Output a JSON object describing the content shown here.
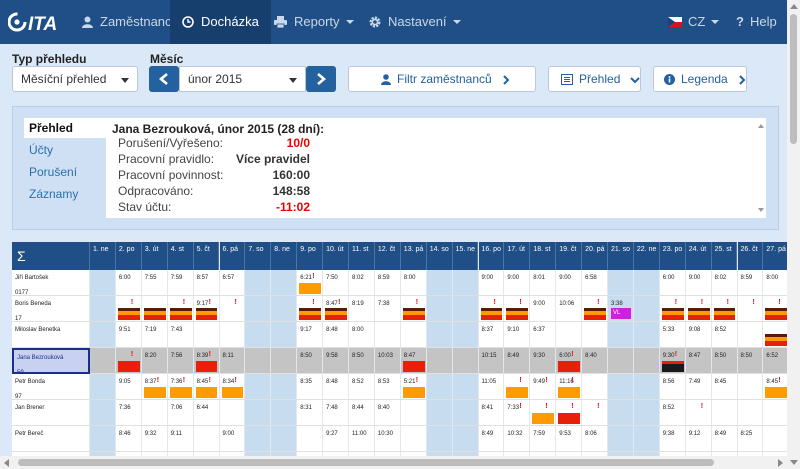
{
  "nav": {
    "logo_text": "ITA",
    "items": [
      {
        "label": "Zaměstnanci",
        "icon": "user-icon"
      },
      {
        "label": "Docházka",
        "icon": "clock-icon",
        "active": true
      },
      {
        "label": "Reporty",
        "icon": "print-icon",
        "dropdown": true
      },
      {
        "label": "Nastavení",
        "icon": "gear-icon",
        "dropdown": true
      }
    ],
    "lang": "CZ",
    "help": "Help"
  },
  "filters": {
    "type_label": "Typ přehledu",
    "type_value": "Měsíční přehled",
    "month_label": "Měsíc",
    "month_value": "únor 2015",
    "filter_button": "Filtr zaměstnanců",
    "overview_button": "Přehled",
    "legend_button": "Legenda"
  },
  "summary": {
    "tabs": [
      "Přehled",
      "Účty",
      "Porušení",
      "Záznamy"
    ],
    "title": "Jana Bezrouková, únor 2015 (28 dní):",
    "rows": [
      {
        "key": "Porušení/Vyřešeno:",
        "value": "10/0",
        "red": true
      },
      {
        "key": "Pracovní pravidlo:",
        "value": "Více pravidel",
        "red": false
      },
      {
        "key": "Pracovní povinnost:",
        "value": "160:00",
        "red": false
      },
      {
        "key": "Odpracováno:",
        "value": "148:58",
        "red": false
      },
      {
        "key": "Stav účtu:",
        "value": "-11:02",
        "red": true
      }
    ]
  },
  "grid": {
    "sigma": "Σ",
    "days": [
      "1. ne",
      "2. po",
      "3. út",
      "4. st",
      "5. čt",
      "6. pá",
      "7. so",
      "8. ne",
      "9. po",
      "10. út",
      "11. st",
      "12. čt",
      "13. pá",
      "14. so",
      "15. ne",
      "16. po",
      "17. út",
      "18. st",
      "19. čt",
      "20. pá",
      "21. so",
      "22. ne",
      "23. po",
      "24. út",
      "25. st",
      "26. čt",
      "27. pá"
    ],
    "weekend_cols": [
      0,
      6,
      7,
      13,
      14,
      20,
      21
    ],
    "colors": {
      "orange": "#ff9a00",
      "red": "#e8200a",
      "dark": "#5a1a0a",
      "purple": "#cc22dd",
      "header": "#1f4f86",
      "weekend": "#c8dcf0"
    },
    "employees": [
      {
        "name": "Jiří Bartošek",
        "num": "0177",
        "times": {
          "1": "6:00",
          "2": "7:55",
          "3": "7:59",
          "4": "8:57",
          "5": "6:57",
          "8": "6:21",
          "9": "7:50",
          "10": "8:02",
          "11": "8:59",
          "12": "8:00",
          "15": "9:00",
          "16": "9:00",
          "17": "8:01",
          "18": "9:00",
          "19": "6:58",
          "22": "6:00",
          "23": "9:00",
          "24": "8:02",
          "25": "8:59",
          "26": "8:00"
        },
        "excl": [
          "8"
        ],
        "bars": {
          "8": "o"
        }
      },
      {
        "name": "Boris Beneda",
        "num": "17",
        "times": {
          "4": "9:17",
          "9": "8:47",
          "10": "8:19",
          "11": "7:38",
          "17": "9:00",
          "18": "10:06",
          "20": "3:38"
        },
        "excl": [
          "1",
          "3",
          "4",
          "5",
          "8",
          "9",
          "12",
          "15",
          "16",
          "19",
          "22",
          "23",
          "24",
          "25",
          "26"
        ],
        "bars": {
          "1": "s",
          "2": "s",
          "3": "s",
          "4": "s",
          "8": "s",
          "9": "s",
          "12": "s",
          "15": "s",
          "16": "s",
          "19": "s",
          "20": "p",
          "22": "s",
          "23": "s",
          "24": "s",
          "26": "s"
        },
        "purple_label": "VL"
      },
      {
        "name": "Miloslav Benetka",
        "num": "",
        "times": {
          "1": "9:51",
          "2": "7:19",
          "3": "7:43",
          "8": "9:17",
          "9": "8:48",
          "10": "8:00",
          "15": "8:37",
          "16": "9:10",
          "17": "6:37",
          "22": "5:33",
          "23": "9:08",
          "24": "8:52"
        },
        "excl": [],
        "bars": {
          "26": "s"
        }
      },
      {
        "name": "Jana Bezrouková",
        "num": "59",
        "times": {
          "2": "8:20",
          "3": "7:56",
          "4": "8:39",
          "5": "8:11",
          "8": "8:50",
          "9": "9:58",
          "10": "8:50",
          "11": "10:03",
          "12": "8:47",
          "15": "10:15",
          "16": "8:49",
          "17": "9:30",
          "18": "6:00",
          "19": "8:40",
          "22": "9:30",
          "23": "8:47",
          "24": "8:50",
          "25": "8:50",
          "26": "6:52"
        },
        "excl": [
          "1",
          "4",
          "18",
          "22"
        ],
        "bars": {
          "1": "r",
          "4": "r",
          "12": "r",
          "18": "r",
          "22": "k"
        }
      },
      {
        "name": "Petr Bonda",
        "num": "97",
        "times": {
          "1": "9:05",
          "2": "8:37",
          "3": "7:36",
          "4": "8:45",
          "5": "8:34",
          "8": "8:35",
          "9": "8:48",
          "10": "8:52",
          "11": "8:53",
          "12": "5:21",
          "15": "11:05",
          "17": "9:49",
          "18": "11:16",
          "22": "8:56",
          "23": "7:49",
          "24": "8:45",
          "26": "8:45"
        },
        "excl": [
          "2",
          "3",
          "4",
          "5",
          "12",
          "16",
          "17",
          "18",
          "26"
        ],
        "bars": {
          "2": "o",
          "3": "o",
          "4": "o",
          "5": "o",
          "12": "o",
          "16": "o",
          "18": "o",
          "26": "o"
        }
      },
      {
        "name": "Jan Brener",
        "num": "",
        "times": {
          "1": "7:36",
          "3": "7:06",
          "4": "6:44",
          "8": "8:31",
          "9": "7:48",
          "10": "8:44",
          "11": "8:40",
          "15": "8:41",
          "16": "7:33",
          "22": "8:52"
        },
        "excl": [
          "16",
          "17",
          "18",
          "19",
          "23"
        ],
        "bars": {
          "17": "o",
          "18": "r"
        }
      },
      {
        "name": "Petr Bereč",
        "num": "",
        "times": {
          "1": "8:46",
          "2": "9:32",
          "3": "9:11",
          "5": "9:00",
          "9": "9:27",
          "10": "11:00",
          "11": "10:30",
          "15": "8:49",
          "16": "10:32",
          "17": "7:59",
          "18": "9:53",
          "19": "8:06",
          "22": "9:38",
          "23": "9:12",
          "24": "8:49",
          "25": "8:25"
        },
        "excl": [],
        "bars": {}
      }
    ]
  }
}
